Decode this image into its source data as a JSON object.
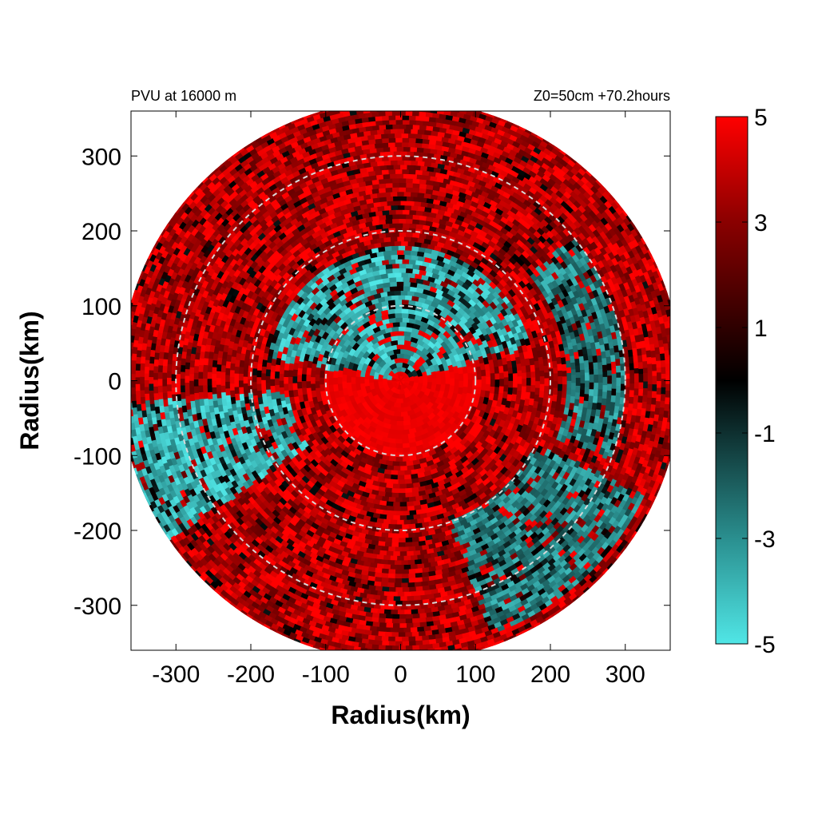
{
  "chart_data": {
    "type": "heatmap",
    "projection": "polar-disk",
    "title_left": "PVU at 16000 m",
    "title_right": "Z0=50cm  +70.2hours",
    "xlabel": "Radius(km)",
    "ylabel": "Radius(km)",
    "xlim": [
      -360,
      360
    ],
    "ylim": [
      -360,
      360
    ],
    "x_ticks": [
      -300,
      -200,
      -100,
      0,
      100,
      200,
      300
    ],
    "y_ticks": [
      300,
      200,
      100,
      0,
      -100,
      -200,
      -300
    ],
    "x_tick_labels": [
      "-300",
      "-200",
      "-100",
      "0",
      "100",
      "200",
      "300"
    ],
    "y_tick_labels": [
      "300",
      "200",
      "100",
      "0",
      "-100",
      "-200",
      "-300"
    ],
    "data_radius_km": 375,
    "reference_circles_km": [
      100,
      200,
      300
    ],
    "grid": false,
    "colorbar": {
      "range": [
        -5,
        5
      ],
      "tick_values": [
        5,
        3,
        1,
        -1,
        -3,
        -5
      ],
      "tick_labels": [
        "5",
        "3",
        "1",
        "-1",
        "-3",
        "-5"
      ],
      "stops": [
        {
          "value": -5,
          "color": "#50e6e6"
        },
        {
          "value": -3,
          "color": "#2a8f8f"
        },
        {
          "value": 0,
          "color": "#000000"
        },
        {
          "value": 3,
          "color": "#8a0000"
        },
        {
          "value": 5,
          "color": "#ff0000"
        }
      ]
    },
    "features": [
      {
        "region": "central core",
        "r_km": [
          0,
          100
        ],
        "pvu": 5
      },
      {
        "region": "cyan band north of center",
        "r_km": [
          10,
          180
        ],
        "theta_deg": [
          15,
          170
        ],
        "pvu": -5
      },
      {
        "region": "cyan arm to west-southwest",
        "r_km": [
          150,
          375
        ],
        "theta_deg": [
          185,
          215
        ],
        "pvu": -5
      },
      {
        "region": "cyan patches east",
        "r_km": [
          220,
          300
        ],
        "theta_deg": [
          -20,
          40
        ],
        "pvu": -4
      },
      {
        "region": "cyan patches southeast",
        "r_km": [
          200,
          360
        ],
        "theta_deg": [
          -70,
          -25
        ],
        "pvu": -4
      },
      {
        "region": "outer ring",
        "r_km": [
          200,
          375
        ],
        "pvu": 4
      }
    ]
  }
}
